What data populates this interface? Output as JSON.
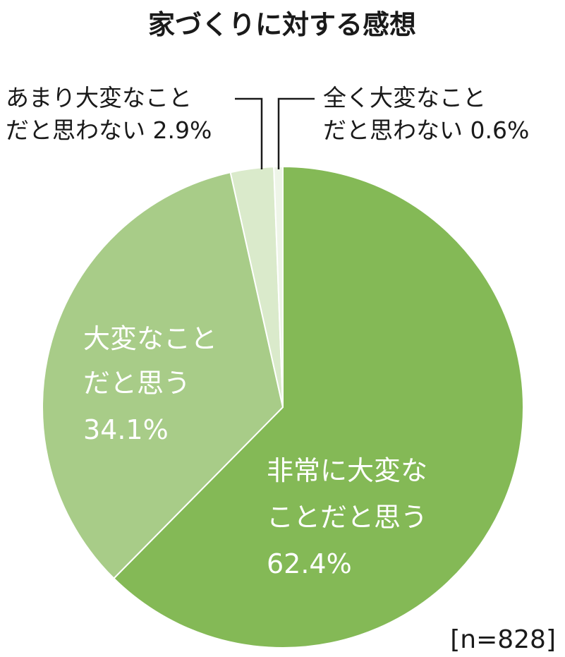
{
  "chart_data": {
    "type": "pie",
    "title": "家づくりに対する感想",
    "note": "[n=828]",
    "slices": [
      {
        "label_lines": [
          "非常に大変な",
          "ことだと思う"
        ],
        "percent_label": "62.4%",
        "value": 62.4,
        "color": "#84b956"
      },
      {
        "label_lines": [
          "大変なこと",
          "だと思う"
        ],
        "percent_label": "34.1%",
        "value": 34.1,
        "color": "#a8cc88"
      },
      {
        "label_lines": [
          "あまり大変なこと",
          "だと思わない"
        ],
        "percent_label": "2.9%",
        "value": 2.9,
        "color": "#daeacb"
      },
      {
        "label_lines": [
          "全く大変なこと",
          "だと思わない"
        ],
        "percent_label": "0.6%",
        "value": 0.6,
        "color": "#eef5e8"
      }
    ]
  }
}
